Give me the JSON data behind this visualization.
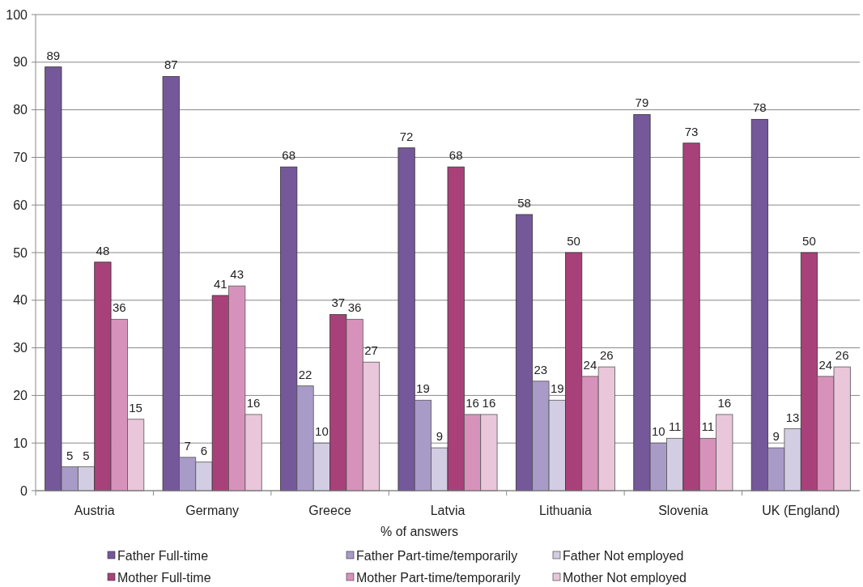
{
  "chart_data": {
    "type": "bar",
    "xlabel": "% of answers",
    "categories": [
      "Austria",
      "Germany",
      "Greece",
      "Latvia",
      "Lithuania",
      "Slovenia",
      "UK (England)"
    ],
    "series": [
      {
        "name": "Father Full-time",
        "color": "#75589a",
        "values": [
          89,
          87,
          68,
          72,
          58,
          79,
          78
        ]
      },
      {
        "name": "Father Part-time/temporarily",
        "color": "#a99bc8",
        "values": [
          5,
          7,
          22,
          19,
          23,
          10,
          9
        ]
      },
      {
        "name": "Father Not employed",
        "color": "#d3cde3",
        "values": [
          5,
          6,
          10,
          9,
          19,
          11,
          13
        ]
      },
      {
        "name": "Mother Full-time",
        "color": "#a8417a",
        "values": [
          48,
          41,
          37,
          68,
          50,
          73,
          50
        ]
      },
      {
        "name": "Mother Part-time/temporarily",
        "color": "#d792bb",
        "values": [
          36,
          43,
          36,
          16,
          24,
          11,
          24
        ]
      },
      {
        "name": "Mother Not employed",
        "color": "#e9c6d9",
        "values": [
          15,
          16,
          27,
          16,
          26,
          16,
          26
        ]
      }
    ],
    "ylim": [
      0,
      100
    ],
    "yticks": [
      0,
      10,
      20,
      30,
      40,
      50,
      60,
      70,
      80,
      90,
      100
    ],
    "grid": "y",
    "data_labels": true,
    "legend": "bottom"
  }
}
